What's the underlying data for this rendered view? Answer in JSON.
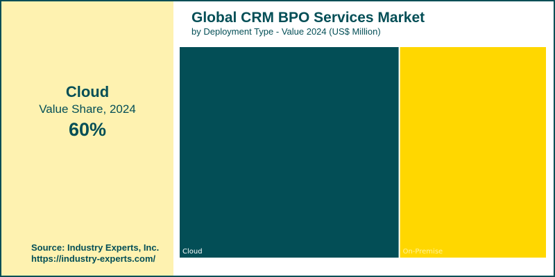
{
  "highlight": {
    "label": "Cloud",
    "sub": "Value Share, 2024",
    "value": "60%"
  },
  "source": {
    "line1": "Source: Industry Experts, Inc.",
    "line2": "https://industry-experts.com/"
  },
  "title": "Global CRM BPO Services Market",
  "subtitle": "by Deployment Type - Value 2024 (US$ Million)",
  "chart_data": {
    "type": "treemap",
    "title": "Global CRM BPO Services Market",
    "subtitle": "by Deployment Type - Value 2024 (US$ Million)",
    "categories": [
      "Cloud",
      "On-Premise"
    ],
    "values": [
      60,
      40
    ],
    "unit": "% share",
    "colors": [
      "#034e56",
      "#ffd700"
    ],
    "label_colors": [
      "#ffffff",
      "#fff3a0"
    ]
  }
}
